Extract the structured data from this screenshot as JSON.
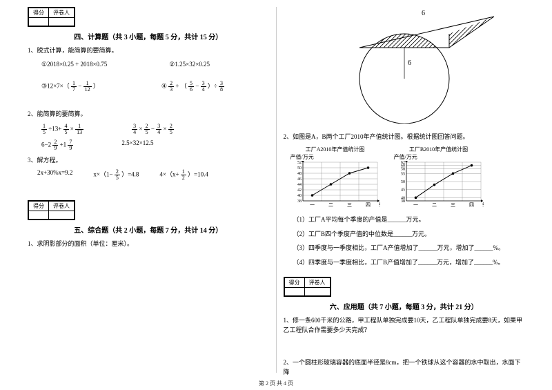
{
  "left": {
    "scorebox": {
      "c1": "得分",
      "c2": "评卷人"
    },
    "sec4_title": "四、计算题（共 3 小题，每题 5 分，共计 15 分）",
    "q1": "1、脱式计算，能简算的要简算。",
    "q1a": "①2018×0.25 + 2018×0.75",
    "q1b": "②1.25×32×0.25",
    "q1c_pre": "③12×7×（",
    "q1c_f1n": "1",
    "q1c_f1d": "7",
    "q1c_mid": " − ",
    "q1c_f2n": "1",
    "q1c_f2d": "12",
    "q1c_post": "）",
    "q1d_pre": "④",
    "q1d_f1n": "2",
    "q1d_f1d": "3",
    "q1d_mid1": " + （",
    "q1d_f2n": "5",
    "q1d_f2d": "6",
    "q1d_mid2": " − ",
    "q1d_f3n": "3",
    "q1d_f3d": "4",
    "q1d_mid3": "）÷",
    "q1d_f4n": "3",
    "q1d_f4d": "8",
    "q2": "2、能简算的要简算。",
    "q2a_f1n": "1",
    "q2a_f1d": "5",
    "q2a_m1": "÷13+",
    "q2a_f2n": "4",
    "q2a_f2d": "5",
    "q2a_m2": "×",
    "q2a_f3n": "1",
    "q2a_f3d": "13",
    "q2b_f1n": "3",
    "q2b_f1d": "4",
    "q2b_m1": "×",
    "q2b_f2n": "2",
    "q2b_f2d": "5",
    "q2b_m2": "−",
    "q2b_f3n": "3",
    "q2b_f3d": "4",
    "q2b_m3": "×",
    "q2b_f4n": "2",
    "q2b_f4d": "5",
    "q2c_pre": "6−2",
    "q2c_f1n": "2",
    "q2c_f1d": "9",
    "q2c_m1": "+1",
    "q2c_f2n": "7",
    "q2c_f2d": "9",
    "q2d": "2.5×32×12.5",
    "q3": "3、解方程。",
    "q3a": "2x+30%x=9.2",
    "q3b_pre": "x×（1−",
    "q3b_fn": "2",
    "q3b_fd": "5",
    "q3b_post": "）=4.8",
    "q3c_pre": "4×（x+",
    "q3c_fn": "1",
    "q3c_fd": "2",
    "q3c_post": "）=10.4",
    "sec5_title": "五、综合题（共 2 小题，每题 7 分，共计 14 分）",
    "q5_1": "1、求阴影部分的面积（单位：厘米）。"
  },
  "right": {
    "geom_top": "6",
    "geom_side": "6",
    "q2": "2、如图是A，B两个工厂2010年产值统计图。根据统计图回答问题。",
    "chartA_title": "工厂A2010年产值统计图",
    "chartB_title": "工厂B2010年产值统计图",
    "chart_ylabel": "产值/万元",
    "chart_xlabel": "季度",
    "xticks": [
      "一",
      "二",
      "三",
      "四"
    ],
    "chartA": {
      "yticks": [
        38,
        40,
        42,
        44,
        46,
        48,
        50,
        52
      ],
      "values": [
        40,
        44,
        48,
        50
      ]
    },
    "chartB": {
      "yticks": [
        38,
        40,
        45,
        50,
        55,
        58,
        60,
        62
      ],
      "values": [
        40,
        48,
        55,
        60
      ]
    },
    "grid_color": "#888888",
    "line_color": "#000000",
    "marker_color": "#000000",
    "q2_1": "（1）工厂A平均每个季度的产值是______万元。",
    "q2_2": "（2）工厂B四个季度产值的中位数是______万元。",
    "q2_3": "（3）四季度与一季度相比，工厂A产值增加了______万元，增加了______%。",
    "q2_4": "（4）四季度与一季度相比，工厂B产值增加了______万元，增加了______%。",
    "scorebox": {
      "c1": "得分",
      "c2": "评卷人"
    },
    "sec6_title": "六、应用题（共 7 小题，每题 3 分，共计 21 分）",
    "q6_1": "1、修一条600千米的公路，甲工程队单独完成要10天，乙工程队单独完成要8天，如果甲乙工程队合作需要多少天完成？",
    "q6_2": "2、一个圆柱形玻璃容器的底面半径是8cm，把一个铁球从这个容器的水中取出，水面下降"
  },
  "footer": "第 2 页 共 4 页"
}
